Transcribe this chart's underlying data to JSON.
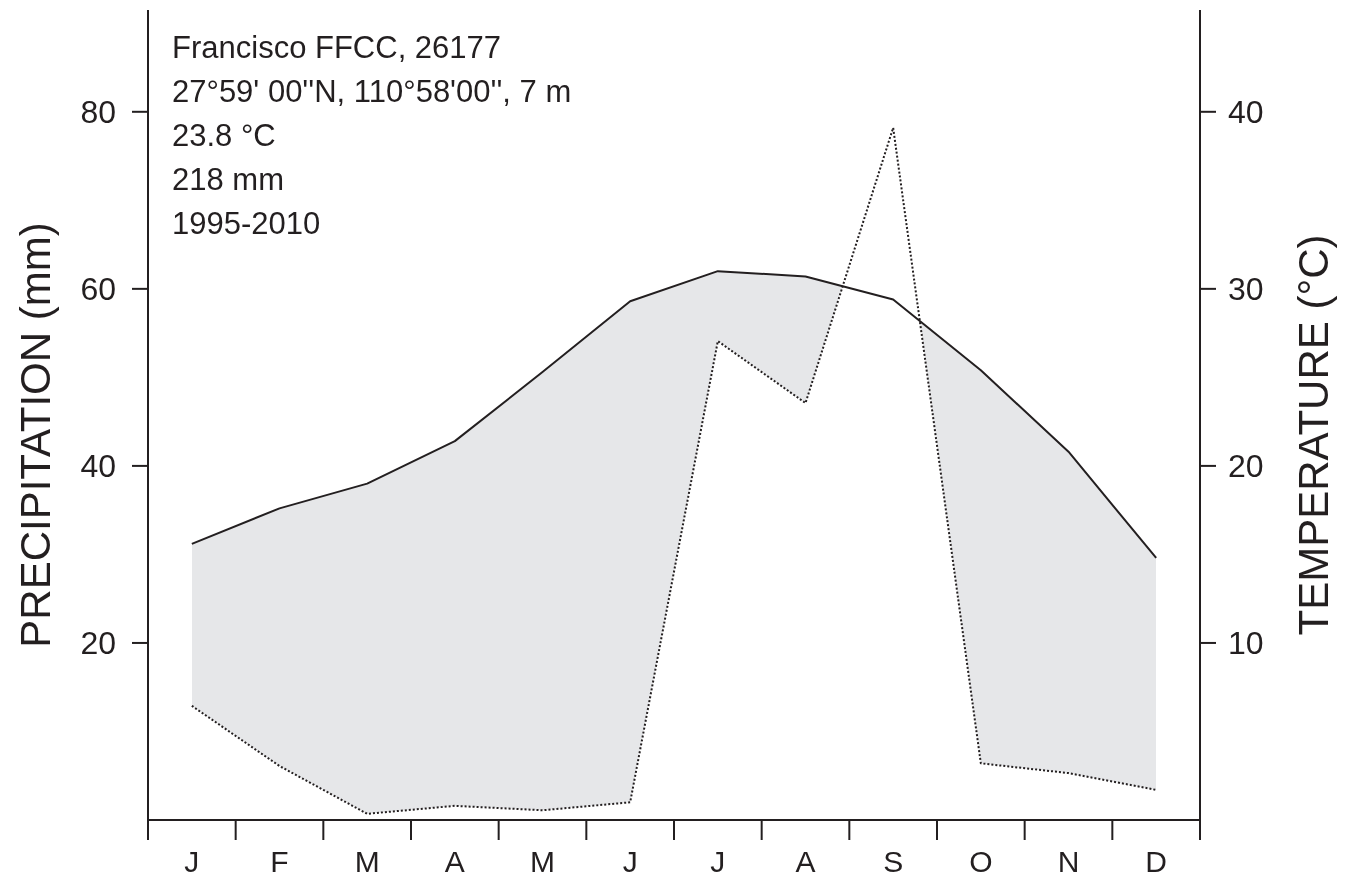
{
  "chart_data": {
    "type": "line",
    "categories": [
      "J",
      "F",
      "M",
      "A",
      "M",
      "J",
      "J",
      "A",
      "S",
      "O",
      "N",
      "D"
    ],
    "series": [
      {
        "color": "#231f20",
        "line_style": "dotted",
        "values": [
          12.9,
          6.1,
          0.7,
          1.6,
          1.1,
          2.0,
          54.1,
          47.1,
          78.2,
          6.4,
          5.3,
          3.4
        ]
      },
      {
        "color": "#231f20",
        "line_style": "solid",
        "axis": "y2",
        "values": [
          15.6,
          17.6,
          19.0,
          21.4,
          25.3,
          29.3,
          31.0,
          30.7,
          29.4,
          25.4,
          20.8,
          14.8
        ],
        "upper": [
          15.6,
          17.6,
          19.0,
          21.4,
          25.3,
          29.3,
          31.0,
          30.7,
          29.4,
          25.4,
          20.8,
          14.8
        ],
        "lower": [
          6.45,
          3.05,
          0.35,
          0.8,
          0.55,
          1.0,
          27.05,
          23.55,
          39.1,
          3.2,
          2.65,
          1.7
        ]
      }
    ],
    "ylim": [
      0,
      91.5
    ],
    "yticks": [
      20,
      40,
      60,
      80
    ],
    "y2lim": [
      0,
      45.75
    ],
    "y2ticks": [
      10,
      20,
      30,
      40
    ],
    "ylabel": "PRECIPITATION (mm)",
    "y2label": "TEMPERATURE (°C)",
    "annotations": [
      "Francisco FFCC, 26177",
      "27°59' 00''N, 110°58'00'', 7 m",
      "23.8 °C",
      "218 mm",
      "1995-2010"
    ]
  }
}
